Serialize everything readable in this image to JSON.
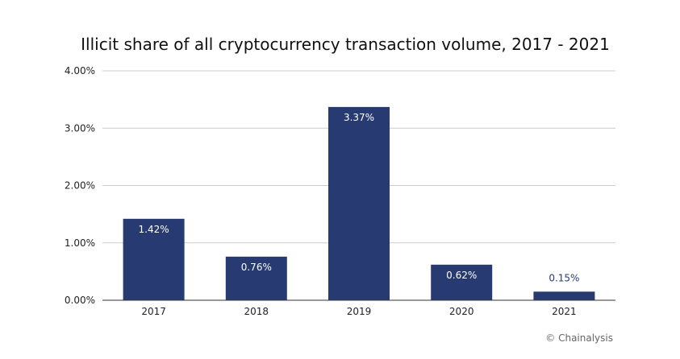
{
  "chart_data": {
    "type": "bar",
    "title": "Illicit share of all cryptocurrency transaction volume, 2017 - 2021",
    "categories": [
      "2017",
      "2018",
      "2019",
      "2020",
      "2021"
    ],
    "values": [
      1.42,
      0.76,
      3.37,
      0.62,
      0.15
    ],
    "value_labels": [
      "1.42%",
      "0.76%",
      "3.37%",
      "0.62%",
      "0.15%"
    ],
    "ylim": [
      0,
      4
    ],
    "yticks": [
      0,
      1,
      2,
      3,
      4
    ],
    "ytick_labels": [
      "0.00%",
      "1.00%",
      "2.00%",
      "3.00%",
      "4.00%"
    ],
    "grid": "horizontal",
    "legend": "none",
    "xlabel": "",
    "ylabel": ""
  },
  "credit": "© Chainalysis",
  "colors": {
    "bar": "#283a72",
    "grid": "#cccccc",
    "axis": "#333333",
    "label_inside": "#ffffff",
    "label_outside": "#283a72"
  }
}
